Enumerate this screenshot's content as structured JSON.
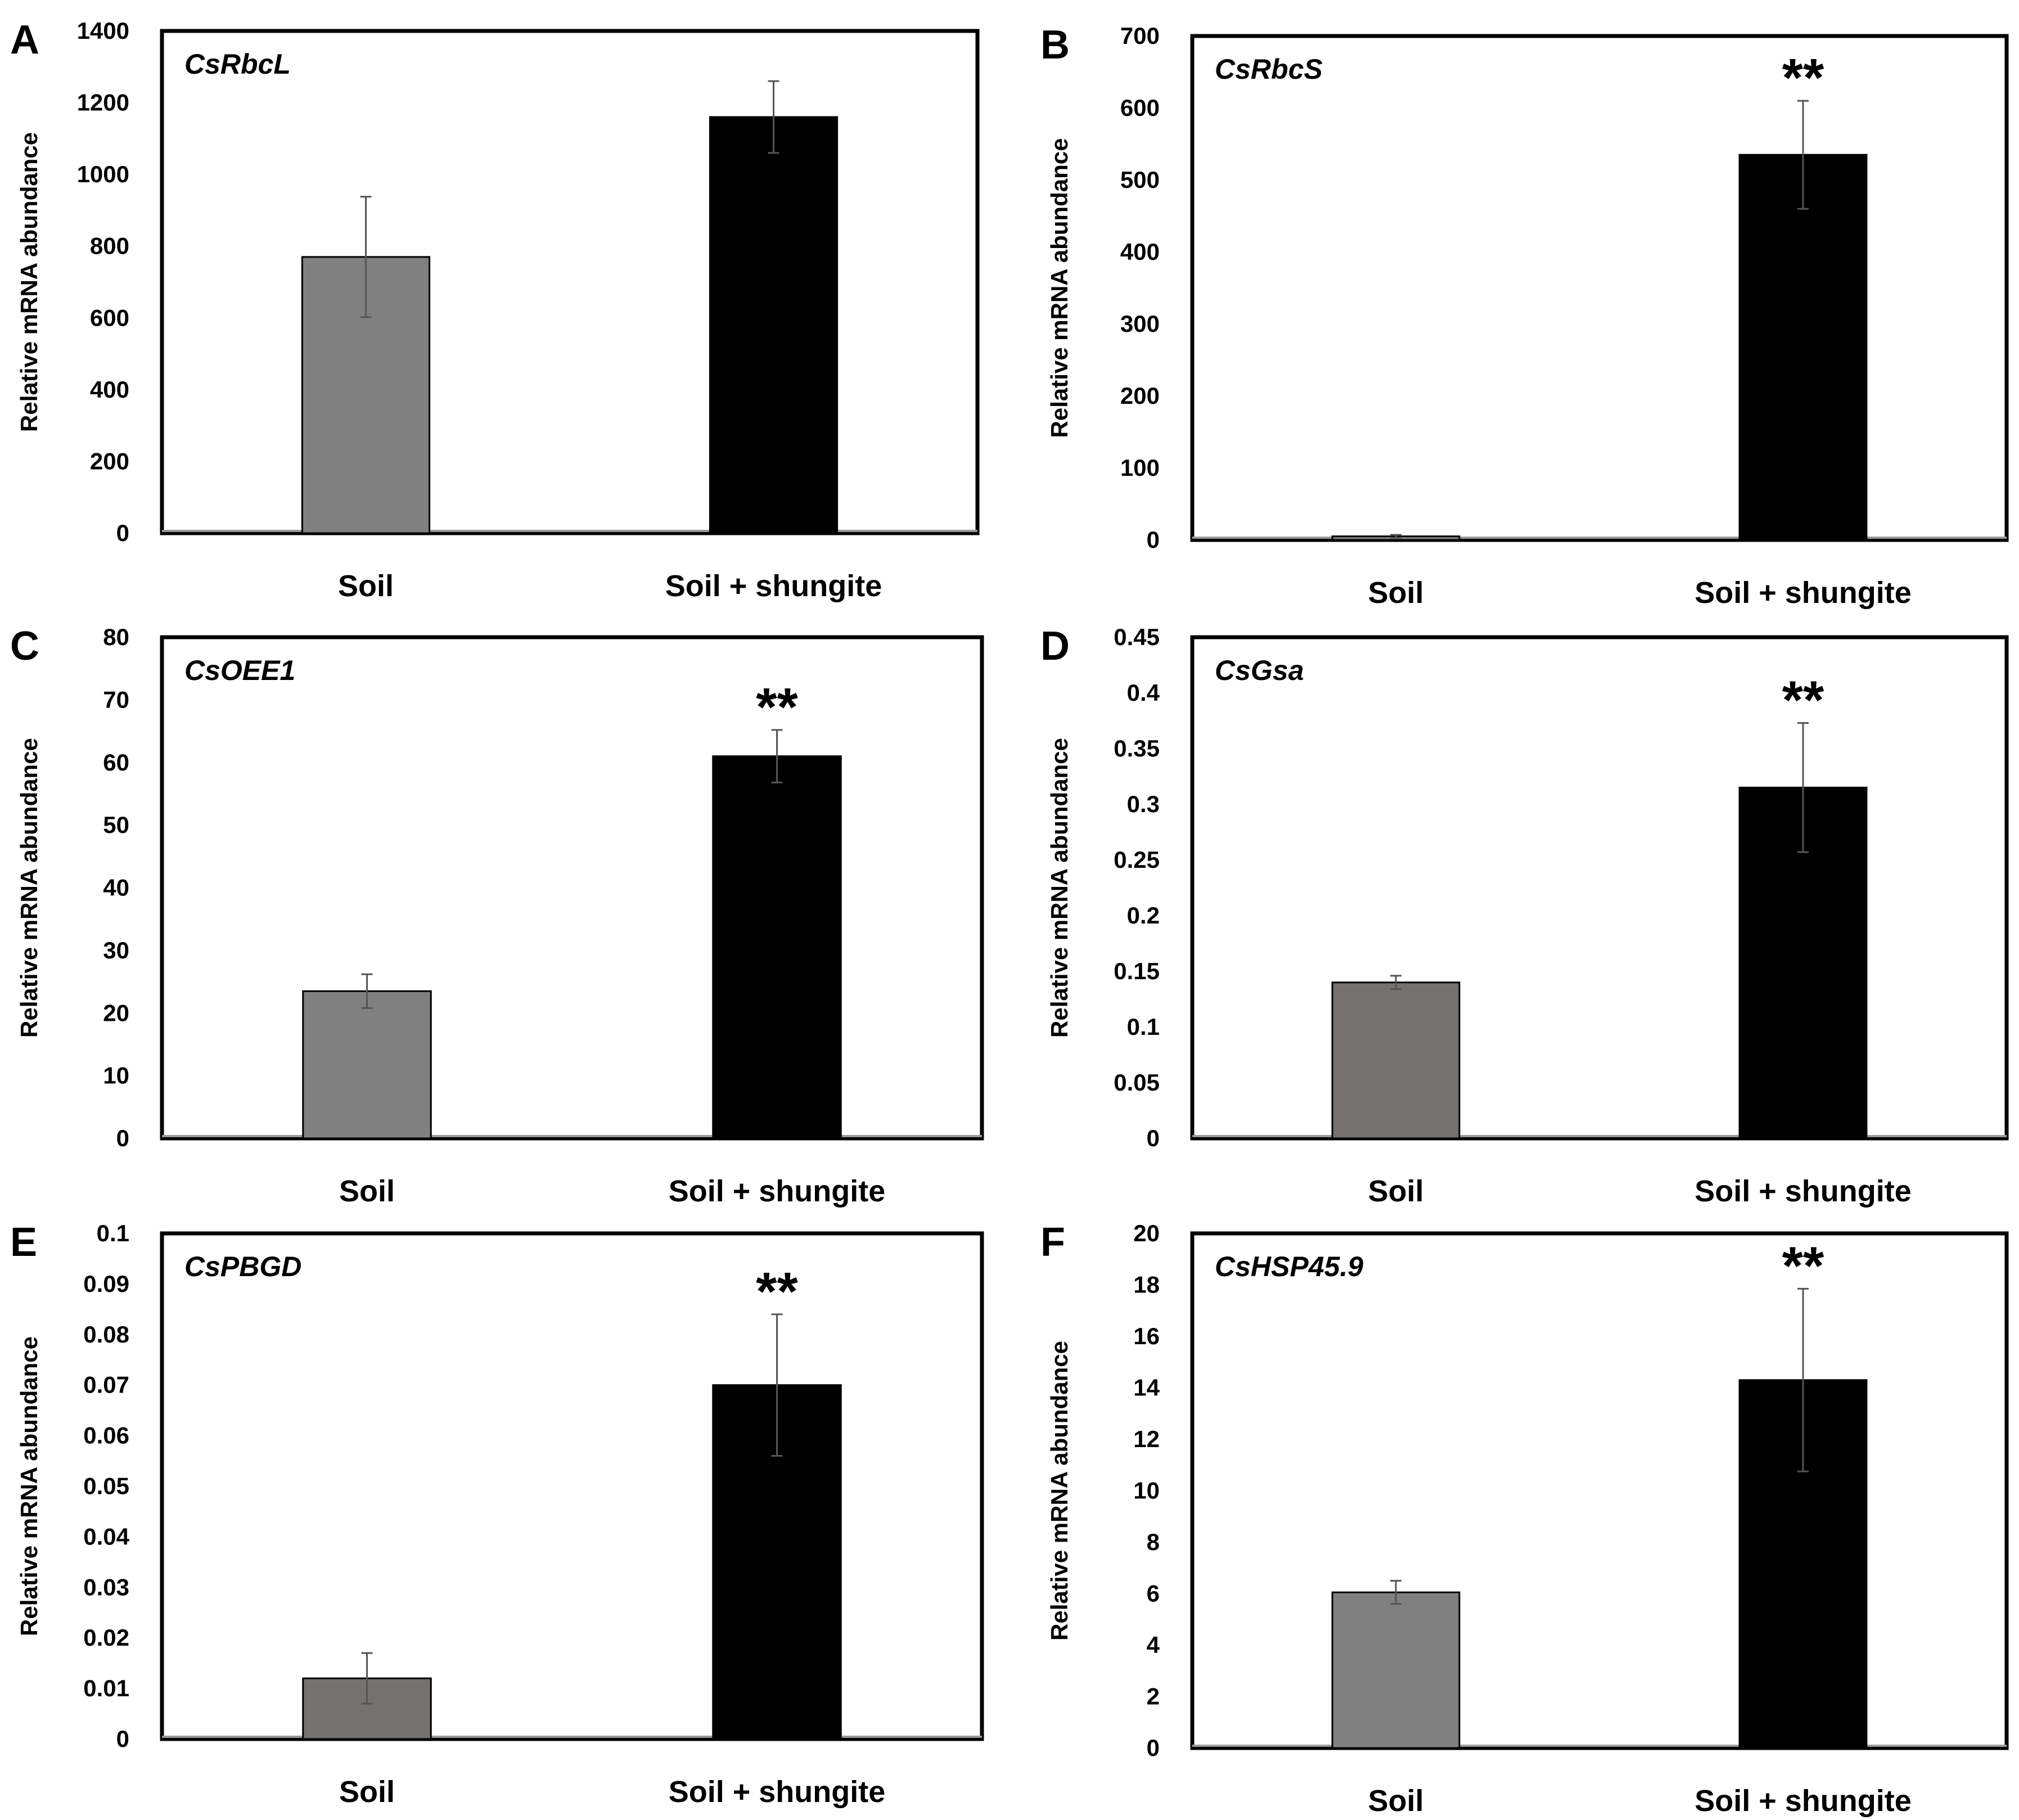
{
  "chart_data": [
    {
      "type": "bar",
      "panel_label": "A",
      "gene": "CsRbcL",
      "categories": [
        "Soil",
        "Soil + shungite"
      ],
      "values": [
        770,
        1160
      ],
      "errors": [
        168,
        100
      ],
      "significance": [
        "",
        ""
      ],
      "bar_colors": [
        "#808080",
        "#000000"
      ],
      "ylabel": "Relative mRNA abundance",
      "ylim": [
        0,
        1400
      ],
      "yticks": [
        "0",
        "200",
        "400",
        "600",
        "800",
        "1000",
        "1200",
        "1400"
      ]
    },
    {
      "type": "bar",
      "panel_label": "B",
      "gene": "CsRbcS",
      "categories": [
        "Soil",
        "Soil + shungite"
      ],
      "values": [
        5,
        535
      ],
      "errors": [
        2,
        75
      ],
      "significance": [
        "",
        "**"
      ],
      "bar_colors": [
        "#808080",
        "#000000"
      ],
      "ylabel": "Relative mRNA abundance",
      "ylim": [
        0,
        700
      ],
      "yticks": [
        "0",
        "100",
        "200",
        "300",
        "400",
        "500",
        "600",
        "700"
      ]
    },
    {
      "type": "bar",
      "panel_label": "C",
      "gene": "CsOEE1",
      "categories": [
        "Soil",
        "Soil + shungite"
      ],
      "values": [
        23.5,
        61
      ],
      "errors": [
        2.7,
        4.2
      ],
      "significance": [
        "",
        "**"
      ],
      "bar_colors": [
        "#808080",
        "#000000"
      ],
      "ylabel": "Relative mRNA abundance",
      "ylim": [
        0,
        80
      ],
      "yticks": [
        "0",
        "10",
        "20",
        "30",
        "40",
        "50",
        "60",
        "70",
        "80"
      ]
    },
    {
      "type": "bar",
      "panel_label": "D",
      "gene": "CsGsa",
      "categories": [
        "Soil",
        "Soil + shungite"
      ],
      "values": [
        0.14,
        0.315
      ],
      "errors": [
        0.006,
        0.058
      ],
      "significance": [
        "",
        "**"
      ],
      "bar_colors": [
        "#767171",
        "#000000"
      ],
      "ylabel": "Relative mRNA abundance",
      "ylim": [
        0,
        0.45
      ],
      "yticks": [
        "0",
        "0.05",
        "0.1",
        "0.15",
        "0.2",
        "0.25",
        "0.3",
        "0.35",
        "0.4",
        "0.45"
      ]
    },
    {
      "type": "bar",
      "panel_label": "E",
      "gene": "CsPBGD",
      "categories": [
        "Soil",
        "Soil + shungite"
      ],
      "values": [
        0.012,
        0.07
      ],
      "errors": [
        0.005,
        0.014
      ],
      "significance": [
        "",
        "**"
      ],
      "bar_colors": [
        "#767171",
        "#000000"
      ],
      "ylabel": "Relative mRNA abundance",
      "ylim": [
        0,
        0.1
      ],
      "yticks": [
        "0",
        "0.01",
        "0.02",
        "0.03",
        "0.04",
        "0.05",
        "0.06",
        "0.07",
        "0.08",
        "0.09",
        "0.1"
      ]
    },
    {
      "type": "bar",
      "panel_label": "F",
      "gene": "CsHSP45.9",
      "categories": [
        "Soil",
        "Soil + shungite"
      ],
      "values": [
        6.05,
        14.3
      ],
      "errors": [
        0.45,
        3.55
      ],
      "significance": [
        "",
        "**"
      ],
      "bar_colors": [
        "#808080",
        "#000000"
      ],
      "ylabel": "Relative mRNA abundance",
      "ylim": [
        0,
        20
      ],
      "yticks": [
        "0",
        "2",
        "4",
        "6",
        "8",
        "10",
        "12",
        "14",
        "16",
        "18",
        "20"
      ]
    }
  ]
}
